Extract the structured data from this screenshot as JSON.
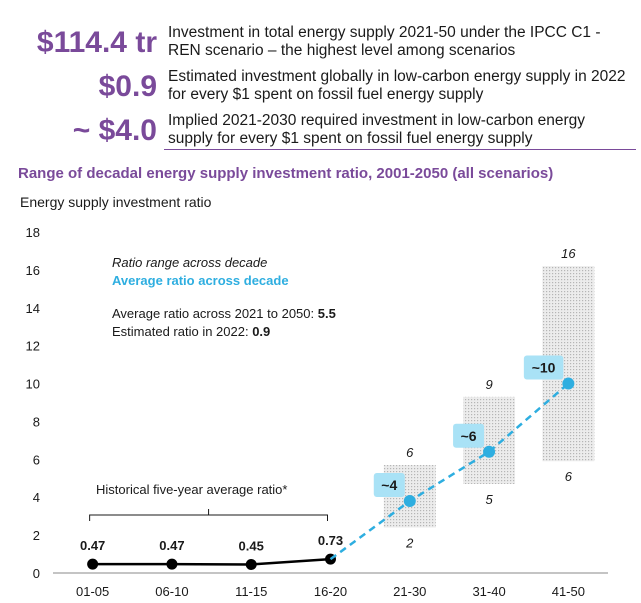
{
  "stats": [
    {
      "value": "$114.4 tr",
      "text": "Investment in total energy supply 2021-50 under the IPCC C1 - REN scenario – the highest level among scenarios"
    },
    {
      "value": "$0.9",
      "text": "Estimated investment globally in low-carbon energy supply in 2022 for every $1 spent on fossil fuel energy supply"
    },
    {
      "value": "~ $4.0",
      "text": "Implied 2021-2030 required investment in low-carbon energy supply for every $1 spent on fossil fuel energy supply"
    }
  ],
  "chart_data": {
    "type": "line",
    "title": "Range of decadal energy supply investment ratio, 2001-2050 (all scenarios)",
    "ylabel": "Energy supply investment ratio",
    "ylim": [
      0,
      18
    ],
    "yticks": [
      0,
      2,
      4,
      6,
      8,
      10,
      12,
      14,
      16,
      18
    ],
    "categories": [
      "01-05",
      "06-10",
      "11-15",
      "16-20",
      "21-30",
      "31-40",
      "41-50"
    ],
    "historical": {
      "label": "Historical five-year average ratio*",
      "categories": [
        "01-05",
        "06-10",
        "11-15",
        "16-20"
      ],
      "values": [
        0.47,
        0.47,
        0.45,
        0.73
      ],
      "labels": [
        "0.47",
        "0.47",
        "0.45",
        "0.73"
      ],
      "color": "#000000"
    },
    "ranges": [
      {
        "category": "21-30",
        "low": 2.4,
        "high": 5.7,
        "low_label": "2",
        "high_label": "6"
      },
      {
        "category": "31-40",
        "low": 4.7,
        "high": 9.3,
        "low_label": "5",
        "high_label": "9"
      },
      {
        "category": "41-50",
        "low": 5.9,
        "high": 16.2,
        "low_label": "6",
        "high_label": "16"
      }
    ],
    "averages": {
      "categories": [
        "16-20",
        "21-30",
        "31-40",
        "41-50"
      ],
      "values": [
        0.73,
        3.8,
        6.4,
        10.0
      ],
      "labels": [
        "",
        "~4",
        "~6",
        "~10"
      ],
      "color": "#2eaee0"
    },
    "legend": {
      "range_label": "Ratio range across decade",
      "average_label": "Average ratio across decade"
    },
    "notes": [
      {
        "text": "Average ratio across 2021 to 2050: ",
        "value": "5.5"
      },
      {
        "text": "Estimated ratio in 2022: ",
        "value": "0.9"
      }
    ],
    "grid": false
  }
}
